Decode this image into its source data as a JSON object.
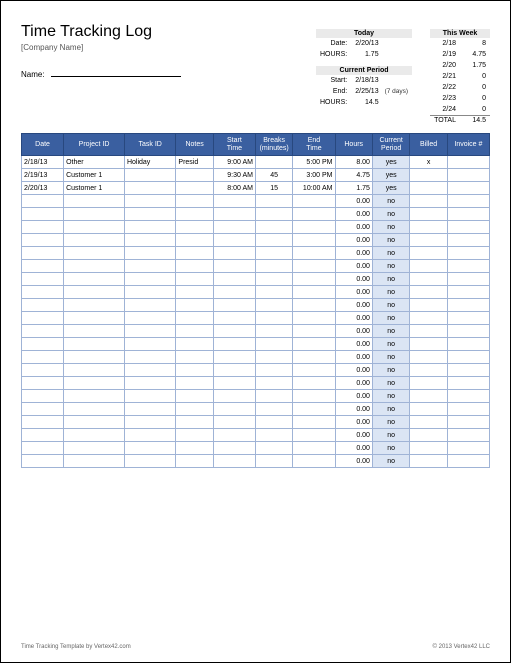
{
  "header": {
    "title": "Time Tracking Log",
    "company": "[Company Name]",
    "name_label": "Name:"
  },
  "today": {
    "title": "Today",
    "date_label": "Date:",
    "date": "2/20/13",
    "hours_label": "HOURS:",
    "hours": "1.75"
  },
  "current_period": {
    "title": "Current Period",
    "start_label": "Start:",
    "start": "2/18/13",
    "end_label": "End:",
    "end": "2/25/13",
    "note": "(7 days)",
    "hours_label": "HOURS:",
    "hours": "14.5"
  },
  "this_week": {
    "title": "This Week",
    "days": [
      {
        "d": "2/18",
        "h": "8"
      },
      {
        "d": "2/19",
        "h": "4.75"
      },
      {
        "d": "2/20",
        "h": "1.75"
      },
      {
        "d": "2/21",
        "h": "0"
      },
      {
        "d": "2/22",
        "h": "0"
      },
      {
        "d": "2/23",
        "h": "0"
      },
      {
        "d": "2/24",
        "h": "0"
      }
    ],
    "total_label": "TOTAL",
    "total": "14.5"
  },
  "table": {
    "columns": [
      "Date",
      "Project ID",
      "Task ID",
      "Notes",
      "Start Time",
      "Breaks (minutes)",
      "End Time",
      "Hours",
      "Current Period",
      "Billed",
      "Invoice #"
    ],
    "rows": [
      {
        "date": "2/18/13",
        "proj": "Other",
        "task": "Holiday",
        "notes": "Presid",
        "start": "9:00 AM",
        "breaks": "",
        "end": "5:00 PM",
        "hours": "8.00",
        "period": "yes",
        "billed": "x",
        "inv": ""
      },
      {
        "date": "2/19/13",
        "proj": "Customer 1",
        "task": "",
        "notes": "",
        "start": "9:30 AM",
        "breaks": "45",
        "end": "3:00 PM",
        "hours": "4.75",
        "period": "yes",
        "billed": "",
        "inv": ""
      },
      {
        "date": "2/20/13",
        "proj": "Customer 1",
        "task": "",
        "notes": "",
        "start": "8:00 AM",
        "breaks": "15",
        "end": "10:00 AM",
        "hours": "1.75",
        "period": "yes",
        "billed": "",
        "inv": ""
      }
    ],
    "empty_rows": 21,
    "empty_hours": "0.00",
    "empty_period": "no"
  },
  "footer": {
    "left": "Time Tracking Template by Vertex42.com",
    "right": "© 2013 Vertex42 LLC"
  },
  "colors": {
    "header_bg": "#3a5fa0",
    "period_bg": "#dbe5f4",
    "border": "#9fb3d6"
  }
}
